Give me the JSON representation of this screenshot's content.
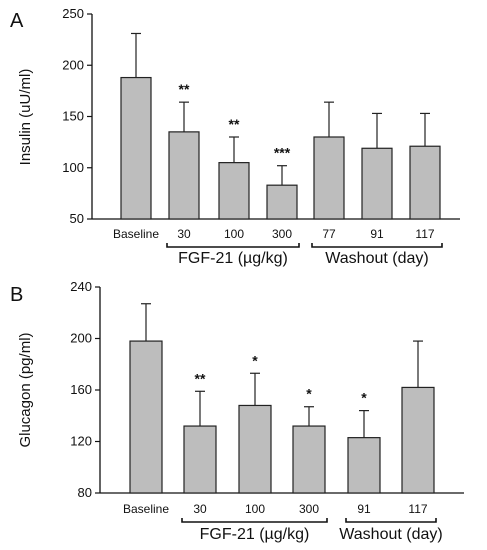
{
  "chart_data": [
    {
      "type": "bar",
      "panel": "A",
      "ylabel": "Insulin (uU/ml)",
      "ylim": [
        50,
        250
      ],
      "yticks": [
        "50",
        "100",
        "150",
        "200",
        "250"
      ],
      "categories": [
        "Baseline",
        "30",
        "100",
        "300",
        "77",
        "91",
        "117"
      ],
      "values": [
        188,
        135,
        105,
        83,
        130,
        119,
        121
      ],
      "errors": [
        43,
        29,
        25,
        19,
        34,
        34,
        32
      ],
      "significance": [
        "",
        "**",
        "**",
        "***",
        "",
        "",
        ""
      ],
      "groups": [
        {
          "label": "FGF-21 (µg/kg)",
          "start": 1,
          "end": 3
        },
        {
          "label": "Washout (day)",
          "start": 4,
          "end": 6
        }
      ],
      "bar_color": "#bdbdbd"
    },
    {
      "type": "bar",
      "panel": "B",
      "ylabel": "Glucagon (pg/ml)",
      "ylim": [
        80,
        240
      ],
      "yticks": [
        "80",
        "120",
        "160",
        "200",
        "240"
      ],
      "categories": [
        "Baseline",
        "30",
        "100",
        "300",
        "91",
        "117"
      ],
      "values": [
        198,
        132,
        148,
        132,
        123,
        162
      ],
      "errors": [
        29,
        27,
        25,
        15,
        21,
        36
      ],
      "significance": [
        "",
        "**",
        "*",
        "*",
        "*",
        ""
      ],
      "groups": [
        {
          "label": "FGF-21 (µg/kg)",
          "start": 1,
          "end": 3
        },
        {
          "label": "Washout (day)",
          "start": 4,
          "end": 5
        }
      ],
      "bar_color": "#bdbdbd"
    }
  ]
}
